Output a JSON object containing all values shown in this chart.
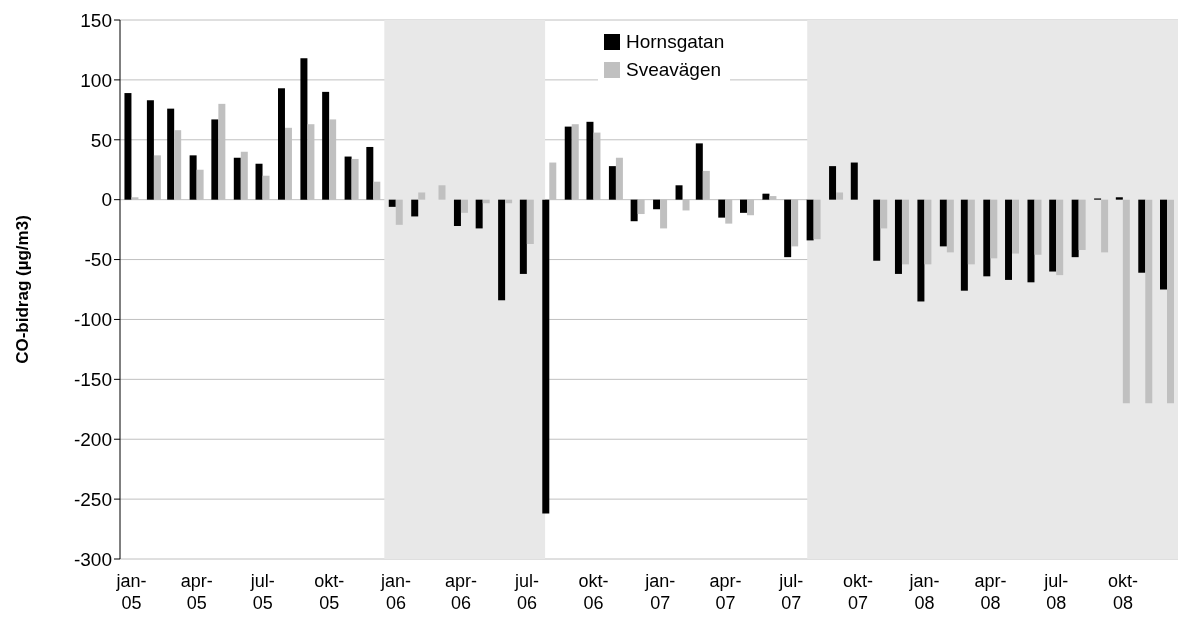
{
  "chart_data": {
    "type": "bar",
    "ylabel": "CO-bidrag (µg/m3)",
    "x": [
      "2005-01",
      "2005-02",
      "2005-03",
      "2005-04",
      "2005-05",
      "2005-06",
      "2005-07",
      "2005-08",
      "2005-09",
      "2005-10",
      "2005-11",
      "2005-12",
      "2006-01",
      "2006-02",
      "2006-03",
      "2006-04",
      "2006-05",
      "2006-06",
      "2006-07",
      "2006-08",
      "2006-09",
      "2006-10",
      "2006-11",
      "2006-12",
      "2007-01",
      "2007-02",
      "2007-03",
      "2007-04",
      "2007-05",
      "2007-06",
      "2007-07",
      "2007-08",
      "2007-09",
      "2007-10",
      "2007-11",
      "2007-12",
      "2008-01",
      "2008-02",
      "2008-03",
      "2008-04",
      "2008-05",
      "2008-06",
      "2008-07",
      "2008-08",
      "2008-09",
      "2008-10",
      "2008-11",
      "2008-12"
    ],
    "series": [
      {
        "name": "Hornsgatan",
        "color": "#000000",
        "values": [
          89,
          83,
          76,
          37,
          67,
          35,
          30,
          93,
          118,
          90,
          36,
          44,
          -6,
          -14,
          0,
          -22,
          -24,
          -84,
          -62,
          -262,
          61,
          65,
          28,
          -18,
          -8,
          12,
          47,
          -15,
          -11,
          5,
          -48,
          -34,
          28,
          31,
          -51,
          -62,
          -85,
          -39,
          -76,
          -64,
          -67,
          -69,
          -60,
          -48,
          1,
          2,
          -61,
          -75
        ]
      },
      {
        "name": "Sveavägen",
        "color": "#c0c0c0",
        "values": [
          2,
          37,
          58,
          25,
          80,
          40,
          20,
          60,
          63,
          67,
          34,
          15,
          -21,
          6,
          12,
          -11,
          -3,
          -3,
          -37,
          31,
          63,
          56,
          35,
          -12,
          -24,
          -9,
          24,
          -20,
          -13,
          3,
          -39,
          -33,
          6,
          0,
          -24,
          -54,
          -54,
          -44,
          -54,
          -49,
          -45,
          -46,
          -63,
          -42,
          -44,
          -170,
          -170,
          -170
        ]
      }
    ],
    "xlim": [
      "2004-12-16",
      "2008-12-16"
    ],
    "xticks": [
      {
        "value": "2005-01",
        "label": "jan-05"
      },
      {
        "value": "2005-04",
        "label": "apr-05"
      },
      {
        "value": "2005-07",
        "label": "jul-05"
      },
      {
        "value": "2005-10",
        "label": "okt-05"
      },
      {
        "value": "2006-01",
        "label": "jan-06"
      },
      {
        "value": "2006-04",
        "label": "apr-06"
      },
      {
        "value": "2006-07",
        "label": "jul-06"
      },
      {
        "value": "2006-10",
        "label": "okt-06"
      },
      {
        "value": "2007-01",
        "label": "jan-07"
      },
      {
        "value": "2007-04",
        "label": "apr-07"
      },
      {
        "value": "2007-07",
        "label": "jul-07"
      },
      {
        "value": "2007-10",
        "label": "okt-07"
      },
      {
        "value": "2008-01",
        "label": "jan-08"
      },
      {
        "value": "2008-04",
        "label": "apr-08"
      },
      {
        "value": "2008-07",
        "label": "jul-08"
      },
      {
        "value": "2008-10",
        "label": "okt-08"
      }
    ],
    "ylim": [
      -300,
      150
    ],
    "yticks": [
      -300,
      -250,
      -200,
      -150,
      -100,
      -50,
      0,
      50,
      100,
      150
    ],
    "bands": [
      {
        "axis": "x",
        "from": "2005-12-16",
        "to": "2006-07-26",
        "color": "#e8e8e8"
      },
      {
        "axis": "x",
        "from": "2007-07-23",
        "to": "2008-12-16",
        "color": "#e8e8e8"
      }
    ],
    "grid": "y",
    "legend": "top"
  }
}
